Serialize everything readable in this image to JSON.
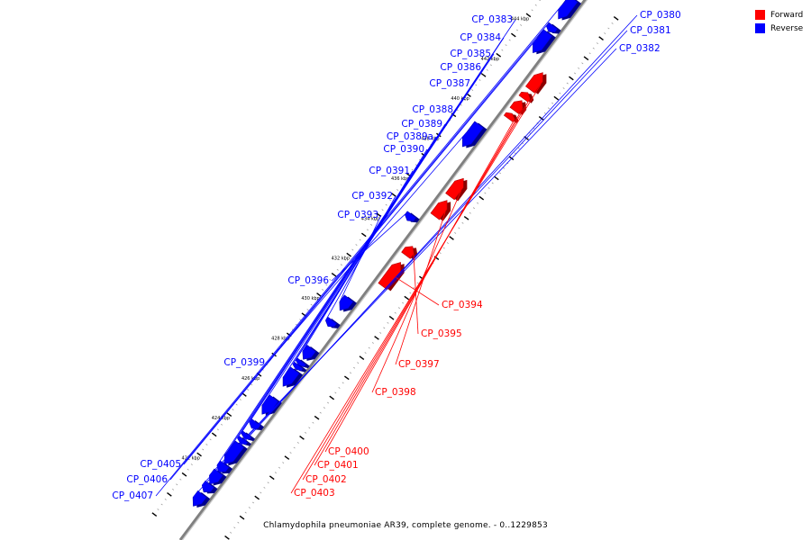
{
  "caption": "Chlamydophila pneumoniae AR39, complete genome. - 0..1229853",
  "legend": [
    {
      "label": "Forward",
      "color": "#ff0000"
    },
    {
      "label": "Reverse",
      "color": "#0000ff"
    }
  ],
  "colors": {
    "forward": "#ff0000",
    "reverse": "#0000ff",
    "backbone": "#808080"
  },
  "scale_unit": "kbp",
  "scale_ticks": [
    422,
    424,
    426,
    428,
    430,
    432,
    434,
    436,
    438,
    440,
    442,
    444
  ],
  "genes": [
    {
      "name": "CP_0380",
      "strand": "reverse",
      "start": 420.2,
      "end": 420.8
    },
    {
      "name": "CP_0381",
      "strand": "reverse",
      "start": 420.9,
      "end": 421.3
    },
    {
      "name": "CP_0382",
      "strand": "reverse",
      "start": 421.3,
      "end": 421.9
    },
    {
      "name": "CP_0383",
      "strand": "reverse",
      "start": 421.9,
      "end": 422.3
    },
    {
      "name": "CP_0384",
      "strand": "reverse",
      "start": 422.3,
      "end": 423.3
    },
    {
      "name": "CP_0385",
      "strand": "reverse",
      "start": 423.35,
      "end": 423.55
    },
    {
      "name": "CP_0386",
      "strand": "reverse",
      "start": 423.6,
      "end": 423.8
    },
    {
      "name": "CP_0387",
      "strand": "reverse",
      "start": 424.1,
      "end": 424.4
    },
    {
      "name": "CP_0388",
      "strand": "reverse",
      "start": 424.8,
      "end": 425.6
    },
    {
      "name": "CP_0389",
      "strand": "reverse",
      "start": 426.2,
      "end": 427.0
    },
    {
      "name": "CP_0389a",
      "strand": "reverse",
      "start": 427.05,
      "end": 427.25
    },
    {
      "name": "CP_0390",
      "strand": "reverse",
      "start": 427.25,
      "end": 427.45
    },
    {
      "name": "CP_0391",
      "strand": "reverse",
      "start": 427.55,
      "end": 428.1
    },
    {
      "name": "CP_0392",
      "strand": "reverse",
      "start": 429.2,
      "end": 429.5
    },
    {
      "name": "CP_0393",
      "strand": "reverse",
      "start": 430.0,
      "end": 430.6
    },
    {
      "name": "CP_0394",
      "strand": "forward",
      "start": 431.8,
      "end": 433.0
    },
    {
      "name": "CP_0395",
      "strand": "forward",
      "start": 433.35,
      "end": 433.8
    },
    {
      "name": "CP_0396",
      "strand": "reverse",
      "start": 434.5,
      "end": 434.8
    },
    {
      "name": "CP_0397",
      "strand": "forward",
      "start": 435.3,
      "end": 436.1
    },
    {
      "name": "CP_0398",
      "strand": "forward",
      "start": 436.3,
      "end": 437.2
    },
    {
      "name": "CP_0399",
      "strand": "reverse",
      "start": 438.2,
      "end": 439.3
    },
    {
      "name": "CP_0400",
      "strand": "forward",
      "start": 440.2,
      "end": 440.45
    },
    {
      "name": "CP_0401",
      "strand": "forward",
      "start": 440.6,
      "end": 441.1
    },
    {
      "name": "CP_0402",
      "strand": "forward",
      "start": 441.2,
      "end": 441.5
    },
    {
      "name": "CP_0403",
      "strand": "forward",
      "start": 441.65,
      "end": 442.5
    },
    {
      "name": "CP_0405",
      "strand": "reverse",
      "start": 442.9,
      "end": 443.9
    },
    {
      "name": "CP_0406",
      "strand": "reverse",
      "start": 443.95,
      "end": 444.25
    },
    {
      "name": "CP_0407",
      "strand": "reverse",
      "start": 444.6,
      "end": 445.6
    }
  ]
}
